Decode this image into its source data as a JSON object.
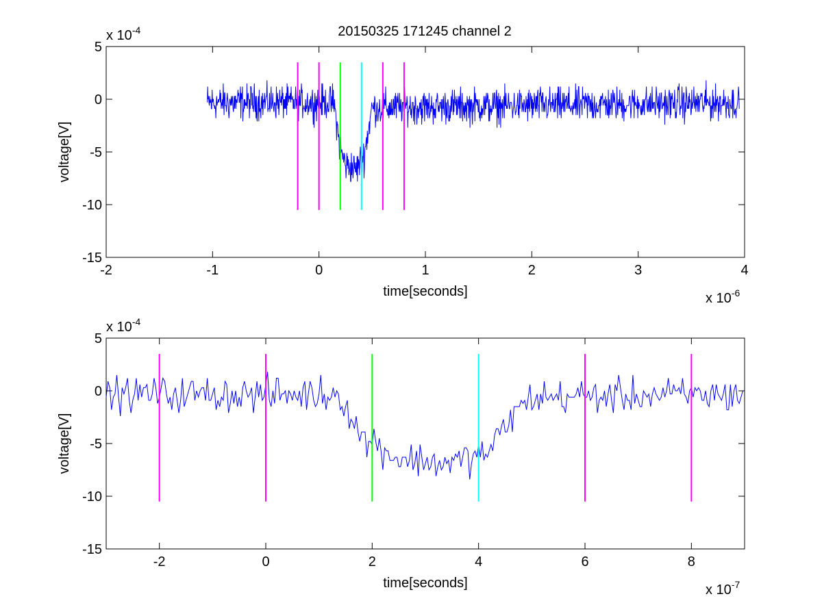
{
  "figure_title": "20150325 171245 channel 2",
  "chart_data": [
    {
      "type": "line",
      "title": "20150325 171245 channel 2",
      "xlabel": "time[seconds]",
      "ylabel": "voltage[V]",
      "x_exponent_label": "x 10",
      "x_exponent_power": "-6",
      "y_exponent_label": "x 10",
      "y_exponent_power": "-4",
      "xlim": [
        -2,
        4
      ],
      "ylim": [
        -15,
        5
      ],
      "xticks": [
        -2,
        -1,
        0,
        1,
        2,
        3,
        4
      ],
      "xtick_labels": [
        "-2",
        "-1",
        "0",
        "1",
        "2",
        "3",
        "4"
      ],
      "yticks": [
        -15,
        -10,
        -5,
        0,
        5
      ],
      "ytick_labels": [
        "-15",
        "-10",
        "-5",
        "0",
        "5"
      ],
      "grid": false,
      "series": [
        {
          "color": "#0000ff",
          "x_start": -1.05,
          "x_end": 3.95,
          "profile": [
            {
              "x": -1.05,
              "y": -0.3
            },
            {
              "x": 0.14,
              "y": -0.3
            },
            {
              "x": 0.2,
              "y": -4.8
            },
            {
              "x": 0.25,
              "y": -6.2
            },
            {
              "x": 0.35,
              "y": -6.6
            },
            {
              "x": 0.42,
              "y": -5.5
            },
            {
              "x": 0.5,
              "y": -0.8
            },
            {
              "x": 3.95,
              "y": -0.3
            }
          ]
        }
      ],
      "markers": [
        {
          "x": -0.2,
          "y_from": -10.5,
          "y_to": 3.5,
          "color": "#ff00ff"
        },
        {
          "x": 0.0,
          "y_from": -10.5,
          "y_to": 3.5,
          "color": "#ff00ff"
        },
        {
          "x": 0.2,
          "y_from": -10.5,
          "y_to": 3.5,
          "color": "#00ff00"
        },
        {
          "x": 0.4,
          "y_from": -10.5,
          "y_to": 3.5,
          "color": "#00ffff"
        },
        {
          "x": 0.6,
          "y_from": -10.5,
          "y_to": 3.5,
          "color": "#ff00ff"
        },
        {
          "x": 0.8,
          "y_from": -10.5,
          "y_to": 3.5,
          "color": "#ff00ff"
        }
      ]
    },
    {
      "type": "line",
      "title": "",
      "xlabel": "time[seconds]",
      "ylabel": "voltage[V]",
      "x_exponent_label": "x 10",
      "x_exponent_power": "-7",
      "y_exponent_label": "x 10",
      "y_exponent_power": "-4",
      "xlim": [
        -3,
        9
      ],
      "ylim": [
        -15,
        5
      ],
      "xticks": [
        -2,
        0,
        2,
        4,
        6,
        8
      ],
      "xtick_labels": [
        "-2",
        "0",
        "2",
        "4",
        "6",
        "8"
      ],
      "yticks": [
        -15,
        -10,
        -5,
        0,
        5
      ],
      "ytick_labels": [
        "-15",
        "-10",
        "-5",
        "0",
        "5"
      ],
      "grid": false,
      "series": [
        {
          "color": "#0000ff",
          "x_start": -3,
          "x_end": 9,
          "profile": [
            {
              "x": -3,
              "y": -0.3
            },
            {
              "x": 1.4,
              "y": -0.3
            },
            {
              "x": 1.8,
              "y": -4.5
            },
            {
              "x": 2.0,
              "y": -4.8
            },
            {
              "x": 2.5,
              "y": -6.5
            },
            {
              "x": 3.5,
              "y": -6.8
            },
            {
              "x": 4.2,
              "y": -5.8
            },
            {
              "x": 4.6,
              "y": -2.5
            },
            {
              "x": 5.0,
              "y": -0.6
            },
            {
              "x": 9,
              "y": -0.3
            }
          ]
        }
      ],
      "markers": [
        {
          "x": -2,
          "y_from": -10.5,
          "y_to": 3.5,
          "color": "#ff00ff"
        },
        {
          "x": 0,
          "y_from": -10.5,
          "y_to": 3.5,
          "color": "#ff00ff"
        },
        {
          "x": 2,
          "y_from": -10.5,
          "y_to": 3.5,
          "color": "#00ff00"
        },
        {
          "x": 4,
          "y_from": -10.5,
          "y_to": 3.5,
          "color": "#00ffff"
        },
        {
          "x": 6,
          "y_from": -10.5,
          "y_to": 3.5,
          "color": "#ff00ff"
        },
        {
          "x": 8,
          "y_from": -10.5,
          "y_to": 3.5,
          "color": "#ff00ff"
        }
      ]
    }
  ]
}
